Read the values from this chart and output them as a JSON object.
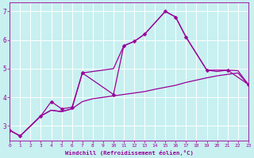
{
  "xlabel": "Windchill (Refroidissement éolien,°C)",
  "xlim": [
    0,
    23
  ],
  "ylim": [
    2.5,
    7.3
  ],
  "bg_color": "#c8f0f0",
  "line_color": "#990099",
  "grid_color": "#ffffff",
  "tick_color": "#990099",
  "line1_x": [
    0,
    1,
    3,
    4,
    5,
    6,
    7,
    10,
    11,
    12,
    13,
    15,
    16,
    17,
    19,
    21,
    23
  ],
  "line1_y": [
    2.85,
    2.65,
    3.35,
    3.85,
    3.6,
    3.65,
    4.85,
    4.1,
    5.8,
    5.95,
    6.2,
    7.0,
    6.8,
    6.1,
    4.95,
    4.95,
    4.45
  ],
  "line2_x": [
    0,
    1,
    3,
    4,
    5,
    6,
    7,
    8,
    9,
    10,
    11,
    12,
    13,
    14,
    15,
    16,
    17,
    18,
    19,
    20,
    21,
    22,
    23
  ],
  "line2_y": [
    2.85,
    2.65,
    3.35,
    3.55,
    3.5,
    3.6,
    3.85,
    3.95,
    4.0,
    4.05,
    4.1,
    4.15,
    4.2,
    4.28,
    4.35,
    4.42,
    4.52,
    4.6,
    4.68,
    4.75,
    4.8,
    4.85,
    4.45
  ],
  "line3_x": [
    0,
    1,
    3,
    4,
    5,
    6,
    7,
    10,
    11,
    12,
    13,
    15,
    16,
    17,
    19,
    20,
    21,
    22,
    23
  ],
  "line3_y": [
    2.85,
    2.65,
    3.35,
    3.55,
    3.5,
    3.6,
    4.85,
    5.0,
    5.8,
    5.95,
    6.2,
    7.0,
    6.8,
    6.1,
    4.95,
    4.9,
    4.95,
    4.93,
    4.45
  ]
}
